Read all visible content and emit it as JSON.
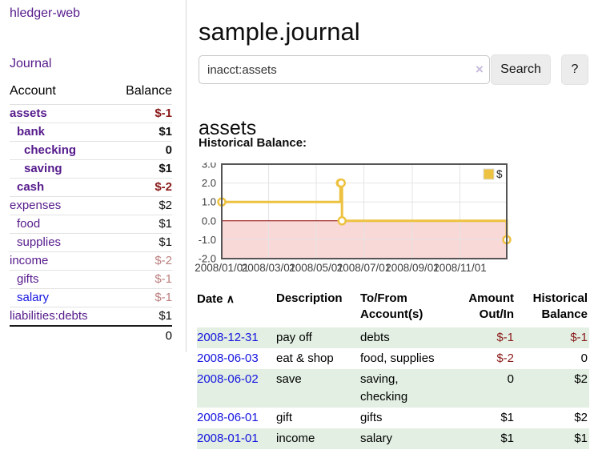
{
  "app": {
    "title": "hledger-web"
  },
  "sidebar": {
    "journal_link": "Journal",
    "accounts": {
      "col_account": "Account",
      "col_balance": "Balance",
      "rows": [
        {
          "name": "assets",
          "indent": 0,
          "balance": "$-1",
          "bold": true,
          "neg": "strong",
          "link": "purple"
        },
        {
          "name": "bank",
          "indent": 1,
          "balance": "$1",
          "bold": true,
          "neg": "none",
          "link": "purple"
        },
        {
          "name": "checking",
          "indent": 2,
          "balance": "0",
          "bold": true,
          "neg": "none",
          "link": "purple"
        },
        {
          "name": "saving",
          "indent": 2,
          "balance": "$1",
          "bold": true,
          "neg": "none",
          "link": "purple"
        },
        {
          "name": "cash",
          "indent": 1,
          "balance": "$-2",
          "bold": true,
          "neg": "strong",
          "link": "purple"
        },
        {
          "name": "expenses",
          "indent": 0,
          "balance": "$2",
          "bold": false,
          "neg": "none",
          "link": "purple"
        },
        {
          "name": "food",
          "indent": 1,
          "balance": "$1",
          "bold": false,
          "neg": "none",
          "link": "purple"
        },
        {
          "name": "supplies",
          "indent": 1,
          "balance": "$1",
          "bold": false,
          "neg": "none",
          "link": "purple"
        },
        {
          "name": "income",
          "indent": 0,
          "balance": "$-2",
          "bold": false,
          "neg": "soft",
          "link": "purple"
        },
        {
          "name": "gifts",
          "indent": 1,
          "balance": "$-1",
          "bold": false,
          "neg": "soft",
          "link": "purple"
        },
        {
          "name": "salary",
          "indent": 1,
          "balance": "$-1",
          "bold": false,
          "neg": "soft",
          "link": "blue"
        },
        {
          "name": "liabilities:debts",
          "indent": 0,
          "balance": "$1",
          "bold": false,
          "neg": "none",
          "link": "purple"
        }
      ],
      "total": "0"
    }
  },
  "main": {
    "title": "sample.journal",
    "search": {
      "value": "inacct:assets",
      "clear_icon": "×",
      "button": "Search",
      "help": "?"
    },
    "account_heading": "assets",
    "chart_heading": "Historical Balance:"
  },
  "chart_data": {
    "type": "line",
    "style": "step",
    "title": "Historical Balance",
    "series": [
      {
        "name": "$",
        "color": "#edc240",
        "points": [
          [
            "2008-01-01",
            1
          ],
          [
            "2008-06-01",
            2
          ],
          [
            "2008-06-02",
            2
          ],
          [
            "2008-06-03",
            0
          ],
          [
            "2008-12-31",
            -1
          ]
        ]
      }
    ],
    "x_range": [
      "2008-01-01",
      "2008-12-31"
    ],
    "ylim": [
      -2,
      3
    ],
    "y_ticks": [
      3.0,
      2.0,
      1.0,
      0.0,
      -1.0,
      -2.0
    ],
    "x_ticks": [
      "2008/01/01",
      "2008/03/01",
      "2008/05/01",
      "2008/07/01",
      "2008/09/01",
      "2008/11/01"
    ],
    "legend": {
      "label": "$",
      "position": "top-right"
    },
    "grid": true,
    "negative_region_color": "#f9d8d8",
    "zero_line_color": "#8b0000",
    "grid_color": "#e4e4e4",
    "border_color": "#555555"
  },
  "register": {
    "headers": {
      "date": "Date",
      "sort_icon": "∧",
      "description": "Description",
      "account": "To/From Account(s)",
      "amount": "Amount Out/In",
      "balance": "Historical Balance"
    },
    "rows": [
      {
        "date": "2008-12-31",
        "description": "pay off",
        "account": "debts",
        "amount": "$-1",
        "amount_neg": true,
        "balance": "$-1",
        "balance_neg": true
      },
      {
        "date": "2008-06-03",
        "description": "eat & shop",
        "account": "food, supplies",
        "amount": "$-2",
        "amount_neg": true,
        "balance": "0",
        "balance_neg": false
      },
      {
        "date": "2008-06-02",
        "description": "save",
        "account": "saving, checking",
        "amount": "0",
        "amount_neg": false,
        "balance": "$2",
        "balance_neg": false
      },
      {
        "date": "2008-06-01",
        "description": "gift",
        "account": "gifts",
        "amount": "$1",
        "amount_neg": false,
        "balance": "$2",
        "balance_neg": false
      },
      {
        "date": "2008-01-01",
        "description": "income",
        "account": "salary",
        "amount": "$1",
        "amount_neg": false,
        "balance": "$1",
        "balance_neg": false
      }
    ]
  },
  "colors": {
    "link_purple": "#551a8b",
    "link_blue": "#1515e0",
    "negative_strong": "#8b1a1a",
    "negative_soft": "#bd7f7f",
    "row_stripe_green": "#e2efe2",
    "series_gold": "#edc240"
  }
}
